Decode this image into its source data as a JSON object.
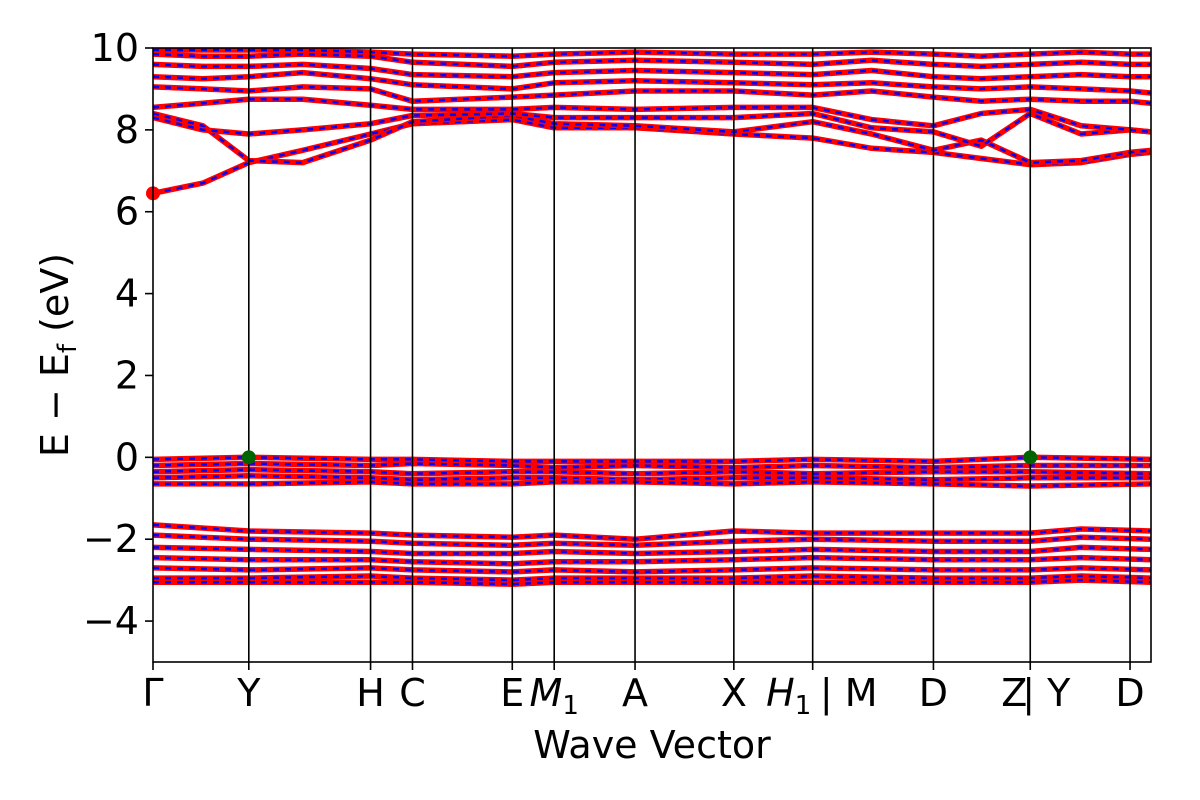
{
  "chart_data": {
    "type": "line",
    "title": "",
    "xlabel": "Wave Vector",
    "ylabel": "E − E_f (eV)",
    "ylabel_main": "E − E",
    "ylabel_sub": "f",
    "ylabel_unit": " (eV)",
    "ylim": [
      -5,
      10
    ],
    "yticks": [
      -4,
      -2,
      0,
      2,
      4,
      6,
      8,
      10
    ],
    "ytick_labels": [
      "−4",
      "−2",
      "0",
      "2",
      "4",
      "6",
      "8",
      "10"
    ],
    "grid": false,
    "legend": "none",
    "kpath_end": 10.0,
    "kpoints": [
      {
        "label": "Γ",
        "sub": "",
        "x": 0.0
      },
      {
        "label": "Y",
        "sub": "",
        "x": 0.96
      },
      {
        "label": "H",
        "sub": "",
        "x": 2.18
      },
      {
        "label": "C",
        "sub": "",
        "x": 2.6
      },
      {
        "label": "E",
        "sub": "",
        "x": 3.6
      },
      {
        "label": "M",
        "sub": "1",
        "x": 4.02
      },
      {
        "label": "A",
        "sub": "",
        "x": 4.83
      },
      {
        "label": "X",
        "sub": "",
        "x": 5.82
      },
      {
        "label": "H",
        "sub": "1",
        "x": 6.61
      },
      {
        "label": "| M",
        "sub": "",
        "x": 6.61
      },
      {
        "label": "D",
        "sub": "",
        "x": 7.82
      },
      {
        "label": "Z",
        "sub": "",
        "x": 8.79
      },
      {
        "label": "| Y",
        "sub": "",
        "x": 8.79
      },
      {
        "label": "D",
        "sub": "",
        "x": 9.79
      }
    ],
    "colors": {
      "spin_up": "#ff0000",
      "spin_down": "#0000ff",
      "cbm": "#ff0000",
      "vbm": "#006400",
      "line": "#000000"
    },
    "markers": [
      {
        "name": "cbm",
        "x": 0.0,
        "y": 6.45
      },
      {
        "name": "vbm",
        "x": 0.96,
        "y": 0.0
      },
      {
        "name": "vbm",
        "x": 8.79,
        "y": 0.0
      }
    ],
    "series": [
      {
        "band": "cb-lowest",
        "x": [
          0.0,
          0.5,
          0.96,
          1.5,
          2.18,
          2.6,
          3.6,
          4.02,
          4.83,
          5.82,
          6.61,
          7.2,
          7.82,
          8.3,
          8.79,
          9.3,
          9.79,
          10.0
        ],
        "y": [
          6.45,
          6.7,
          7.2,
          7.5,
          7.9,
          8.15,
          8.25,
          8.05,
          8.05,
          7.9,
          7.8,
          7.55,
          7.45,
          7.3,
          7.15,
          7.2,
          7.4,
          7.45
        ]
      },
      {
        "band": "cb-2",
        "x": [
          0.0,
          0.5,
          0.96,
          1.5,
          2.18,
          2.6,
          3.6,
          4.02,
          4.83,
          5.82,
          6.61,
          7.2,
          7.82,
          8.3,
          8.79,
          9.3,
          9.79,
          10.0
        ],
        "y": [
          8.4,
          8.1,
          7.25,
          7.2,
          7.75,
          8.2,
          8.35,
          8.15,
          8.1,
          7.95,
          8.2,
          7.9,
          7.5,
          7.75,
          7.2,
          7.25,
          7.45,
          7.5
        ]
      },
      {
        "band": "cb-3",
        "x": [
          0.0,
          0.5,
          0.96,
          1.5,
          2.18,
          2.6,
          3.6,
          4.02,
          4.83,
          5.82,
          6.61,
          7.2,
          7.82,
          8.3,
          8.79,
          9.3,
          9.79,
          10.0
        ],
        "y": [
          8.3,
          8.0,
          7.9,
          8.0,
          8.15,
          8.35,
          8.4,
          8.3,
          8.3,
          8.3,
          8.4,
          8.05,
          7.95,
          7.6,
          8.4,
          7.9,
          8.0,
          7.95
        ]
      },
      {
        "band": "cb-4",
        "x": [
          0.0,
          0.5,
          0.96,
          1.5,
          2.18,
          2.6,
          3.6,
          4.02,
          4.83,
          5.82,
          6.61,
          7.2,
          7.82,
          8.3,
          8.79,
          9.3,
          9.79,
          10.0
        ],
        "y": [
          8.55,
          8.65,
          8.75,
          8.75,
          8.6,
          8.5,
          8.5,
          8.55,
          8.5,
          8.55,
          8.55,
          8.25,
          8.1,
          8.4,
          8.5,
          8.1,
          8.0,
          7.95
        ]
      },
      {
        "band": "cb-5",
        "x": [
          0.0,
          0.5,
          0.96,
          1.5,
          2.18,
          2.6,
          3.6,
          4.02,
          4.83,
          5.82,
          6.61,
          7.2,
          7.82,
          8.3,
          8.79,
          9.3,
          9.79,
          10.0
        ],
        "y": [
          9.05,
          9.0,
          8.95,
          9.05,
          9.0,
          8.7,
          8.8,
          8.85,
          8.95,
          8.95,
          8.85,
          8.95,
          8.8,
          8.7,
          8.75,
          8.7,
          8.7,
          8.65
        ]
      },
      {
        "band": "cb-6",
        "x": [
          0.0,
          0.5,
          0.96,
          1.5,
          2.18,
          2.6,
          3.6,
          4.02,
          4.83,
          5.82,
          6.61,
          7.2,
          7.82,
          8.3,
          8.79,
          9.3,
          9.79,
          10.0
        ],
        "y": [
          9.3,
          9.25,
          9.3,
          9.4,
          9.25,
          9.1,
          9.0,
          9.15,
          9.2,
          9.15,
          9.1,
          9.15,
          9.05,
          9.0,
          9.05,
          9.0,
          8.95,
          8.9
        ]
      },
      {
        "band": "cb-7",
        "x": [
          0.0,
          0.5,
          0.96,
          1.5,
          2.18,
          2.6,
          3.6,
          4.02,
          4.83,
          5.82,
          6.61,
          7.2,
          7.82,
          8.3,
          8.79,
          9.3,
          9.79,
          10.0
        ],
        "y": [
          9.6,
          9.55,
          9.55,
          9.6,
          9.5,
          9.35,
          9.3,
          9.4,
          9.45,
          9.4,
          9.35,
          9.45,
          9.3,
          9.25,
          9.3,
          9.35,
          9.3,
          9.3
        ]
      },
      {
        "band": "cb-8",
        "x": [
          0.0,
          0.5,
          0.96,
          1.5,
          2.18,
          2.6,
          3.6,
          4.02,
          4.83,
          5.82,
          6.61,
          7.2,
          7.82,
          8.3,
          8.79,
          9.3,
          9.79,
          10.0
        ],
        "y": [
          9.85,
          9.8,
          9.8,
          9.85,
          9.8,
          9.65,
          9.55,
          9.65,
          9.7,
          9.65,
          9.6,
          9.7,
          9.6,
          9.55,
          9.6,
          9.65,
          9.6,
          9.6
        ]
      },
      {
        "band": "cb-9",
        "x": [
          0.0,
          0.5,
          0.96,
          1.5,
          2.18,
          2.6,
          3.6,
          4.02,
          4.83,
          5.82,
          6.61,
          7.2,
          7.82,
          8.3,
          8.79,
          9.3,
          9.79,
          10.0
        ],
        "y": [
          9.95,
          9.95,
          9.95,
          9.95,
          9.9,
          9.85,
          9.8,
          9.85,
          9.9,
          9.85,
          9.85,
          9.9,
          9.85,
          9.8,
          9.85,
          9.9,
          9.85,
          9.85
        ]
      },
      {
        "band": "vb-top",
        "x": [
          0.0,
          0.96,
          2.18,
          2.6,
          3.6,
          4.02,
          4.83,
          5.82,
          6.61,
          7.82,
          8.79,
          10.0
        ],
        "y": [
          -0.05,
          0.0,
          -0.05,
          -0.05,
          -0.1,
          -0.1,
          -0.1,
          -0.1,
          -0.05,
          -0.1,
          0.0,
          -0.05
        ]
      },
      {
        "band": "vb-2",
        "x": [
          0.0,
          0.96,
          2.18,
          2.6,
          3.6,
          4.02,
          4.83,
          5.82,
          6.61,
          7.82,
          8.79,
          10.0
        ],
        "y": [
          -0.2,
          -0.15,
          -0.2,
          -0.15,
          -0.2,
          -0.25,
          -0.2,
          -0.25,
          -0.2,
          -0.25,
          -0.2,
          -0.2
        ]
      },
      {
        "band": "vb-3",
        "x": [
          0.0,
          0.96,
          2.18,
          2.6,
          3.6,
          4.02,
          4.83,
          5.82,
          6.61,
          7.82,
          8.79,
          10.0
        ],
        "y": [
          -0.35,
          -0.3,
          -0.35,
          -0.4,
          -0.35,
          -0.35,
          -0.4,
          -0.35,
          -0.4,
          -0.35,
          -0.35,
          -0.4
        ]
      },
      {
        "band": "vb-4",
        "x": [
          0.0,
          0.96,
          2.18,
          2.6,
          3.6,
          4.02,
          4.83,
          5.82,
          6.61,
          7.82,
          8.79,
          10.0
        ],
        "y": [
          -0.5,
          -0.45,
          -0.5,
          -0.55,
          -0.5,
          -0.5,
          -0.55,
          -0.5,
          -0.5,
          -0.55,
          -0.5,
          -0.5
        ]
      },
      {
        "band": "vb-5",
        "x": [
          0.0,
          0.96,
          2.18,
          2.6,
          3.6,
          4.02,
          4.83,
          5.82,
          6.61,
          7.82,
          8.79,
          10.0
        ],
        "y": [
          -0.65,
          -0.65,
          -0.6,
          -0.65,
          -0.65,
          -0.6,
          -0.6,
          -0.65,
          -0.6,
          -0.65,
          -0.7,
          -0.65
        ]
      },
      {
        "band": "lvb-1",
        "x": [
          0.0,
          0.96,
          2.18,
          2.6,
          3.6,
          4.02,
          4.83,
          5.82,
          6.61,
          7.82,
          8.79,
          9.3,
          10.0
        ],
        "y": [
          -1.65,
          -1.8,
          -1.85,
          -1.9,
          -1.95,
          -1.9,
          -2.0,
          -1.8,
          -1.85,
          -1.85,
          -1.85,
          -1.75,
          -1.8
        ]
      },
      {
        "band": "lvb-2",
        "x": [
          0.0,
          0.96,
          2.18,
          2.6,
          3.6,
          4.02,
          4.83,
          5.82,
          6.61,
          7.82,
          8.79,
          9.3,
          10.0
        ],
        "y": [
          -1.9,
          -2.0,
          -2.05,
          -2.1,
          -2.15,
          -2.1,
          -2.15,
          -2.05,
          -2.0,
          -2.05,
          -2.05,
          -1.95,
          -2.0
        ]
      },
      {
        "band": "lvb-3",
        "x": [
          0.0,
          0.96,
          2.18,
          2.6,
          3.6,
          4.02,
          4.83,
          5.82,
          6.61,
          7.82,
          8.79,
          9.3,
          10.0
        ],
        "y": [
          -2.2,
          -2.25,
          -2.3,
          -2.35,
          -2.35,
          -2.3,
          -2.35,
          -2.3,
          -2.25,
          -2.3,
          -2.3,
          -2.2,
          -2.25
        ]
      },
      {
        "band": "lvb-4",
        "x": [
          0.0,
          0.96,
          2.18,
          2.6,
          3.6,
          4.02,
          4.83,
          5.82,
          6.61,
          7.82,
          8.79,
          9.3,
          10.0
        ],
        "y": [
          -2.45,
          -2.5,
          -2.5,
          -2.55,
          -2.6,
          -2.55,
          -2.55,
          -2.5,
          -2.45,
          -2.5,
          -2.5,
          -2.45,
          -2.5
        ]
      },
      {
        "band": "lvb-5",
        "x": [
          0.0,
          0.96,
          2.18,
          2.6,
          3.6,
          4.02,
          4.83,
          5.82,
          6.61,
          7.82,
          8.79,
          9.3,
          10.0
        ],
        "y": [
          -2.7,
          -2.75,
          -2.7,
          -2.75,
          -2.8,
          -2.75,
          -2.8,
          -2.75,
          -2.7,
          -2.75,
          -2.75,
          -2.7,
          -2.75
        ]
      },
      {
        "band": "lvb-6",
        "x": [
          0.0,
          0.96,
          2.18,
          2.6,
          3.6,
          4.02,
          4.83,
          5.82,
          6.61,
          7.82,
          8.79,
          9.3,
          10.0
        ],
        "y": [
          -2.95,
          -2.95,
          -2.9,
          -2.95,
          -3.0,
          -2.95,
          -2.95,
          -2.95,
          -2.9,
          -2.95,
          -2.95,
          -2.9,
          -2.95
        ]
      },
      {
        "band": "lvb-7",
        "x": [
          0.0,
          0.96,
          2.18,
          2.6,
          3.6,
          4.02,
          4.83,
          5.82,
          6.61,
          7.82,
          8.79,
          9.3,
          10.0
        ],
        "y": [
          -3.05,
          -3.05,
          -3.05,
          -3.05,
          -3.1,
          -3.05,
          -3.05,
          -3.05,
          -3.05,
          -3.05,
          -3.05,
          -3.0,
          -3.05
        ]
      }
    ]
  }
}
